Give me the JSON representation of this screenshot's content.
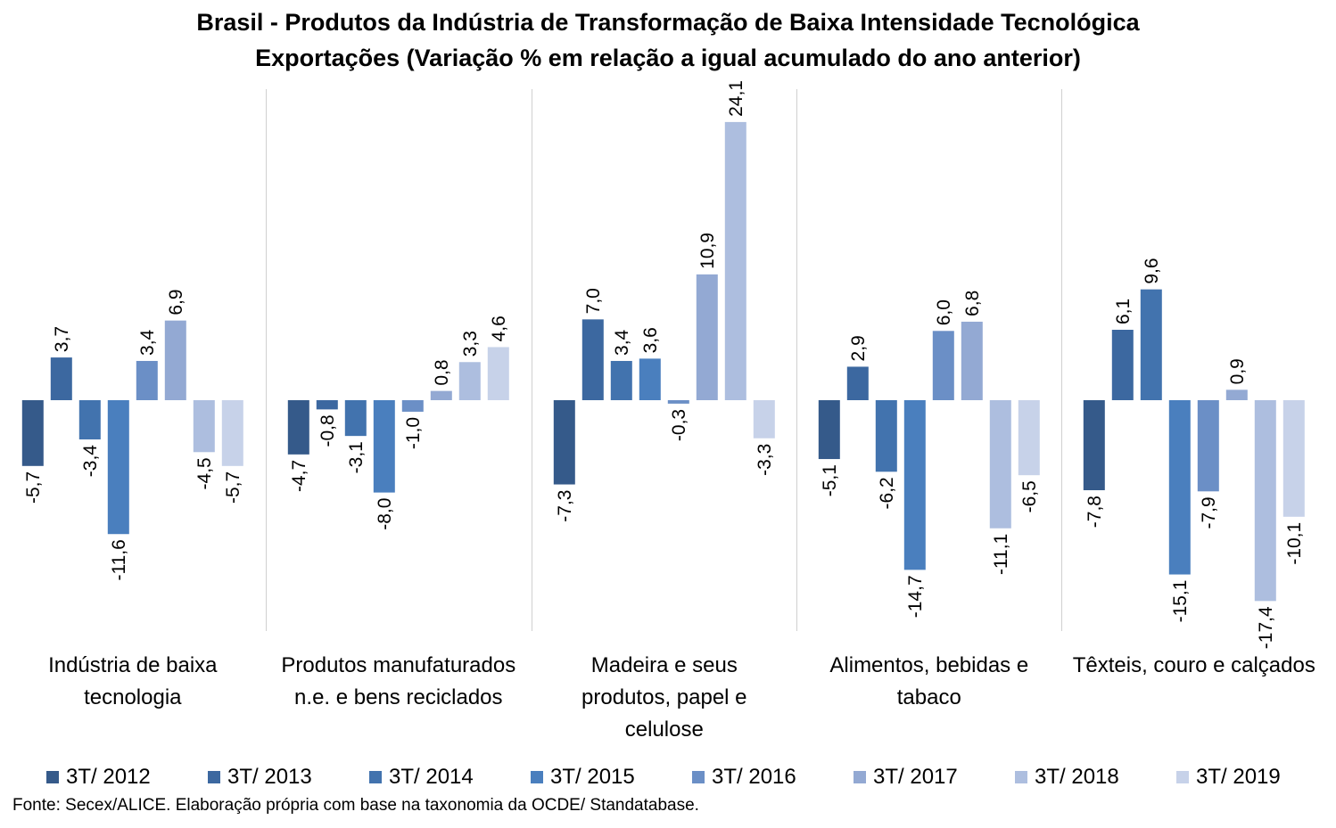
{
  "title": "Brasil - Produtos da Indústria de Transformação de Baixa Intensidade Tecnológica",
  "subtitle": "Exportações (Variação % em relação a igual acumulado do ano anterior)",
  "source": "Fonte: Secex/ALICE. Elaboração própria com base na taxonomia da OCDE/ Standatabase.",
  "chart_data": {
    "type": "bar",
    "categories": [
      [
        "Indústria de baixa",
        "tecnologia"
      ],
      [
        "Produtos manufaturados",
        "n.e. e bens reciclados"
      ],
      [
        "Madeira e seus",
        "produtos, papel e",
        "celulose"
      ],
      [
        "Alimentos, bebidas e",
        "tabaco"
      ],
      [
        "Têxteis, couro e calçados"
      ]
    ],
    "series": [
      {
        "name": "3T/ 2012",
        "color": "#355a8a",
        "values": [
          -5.7,
          -4.7,
          -7.3,
          -5.1,
          -7.8
        ],
        "labels": [
          "-5,7",
          "-4,7",
          "-7,3",
          "-5,1",
          "-7,8"
        ]
      },
      {
        "name": "3T/ 2013",
        "color": "#3c68a0",
        "values": [
          3.7,
          -0.8,
          7.0,
          2.9,
          6.1
        ],
        "labels": [
          "3,7",
          "-0,8",
          "7,0",
          "2,9",
          "6,1"
        ]
      },
      {
        "name": "3T/ 2014",
        "color": "#4273ae",
        "values": [
          -3.4,
          -3.1,
          3.4,
          -6.2,
          9.6
        ],
        "labels": [
          "-3,4",
          "-3,1",
          "3,4",
          "-6,2",
          "9,6"
        ]
      },
      {
        "name": "3T/ 2015",
        "color": "#4a7fbe",
        "values": [
          -11.6,
          -8.0,
          3.6,
          -14.7,
          -15.1
        ],
        "labels": [
          "-11,6",
          "-8,0",
          "3,6",
          "-14,7",
          "-15,1"
        ]
      },
      {
        "name": "3T/ 2016",
        "color": "#6b8fc6",
        "values": [
          3.4,
          -1.0,
          -0.3,
          6.0,
          -7.9
        ],
        "labels": [
          "3,4",
          "-1,0",
          "-0,3",
          "6,0",
          "-7,9"
        ]
      },
      {
        "name": "3T/ 2017",
        "color": "#93a9d3",
        "values": [
          6.9,
          0.8,
          10.9,
          6.8,
          0.9
        ],
        "labels": [
          "6,9",
          "0,8",
          "10,9",
          "6,8",
          "0,9"
        ]
      },
      {
        "name": "3T/ 2018",
        "color": "#adbedf",
        "values": [
          -4.5,
          3.3,
          24.1,
          -11.1,
          -17.4
        ],
        "labels": [
          "-4,5",
          "3,3",
          "24,1",
          "-11,1",
          "-17,4"
        ]
      },
      {
        "name": "3T/ 2019",
        "color": "#c7d2e9",
        "values": [
          -5.7,
          4.6,
          -3.3,
          -6.5,
          -10.1
        ],
        "labels": [
          "-5,7",
          "4,6",
          "-3,3",
          "-6,5",
          "-10,1"
        ]
      }
    ],
    "gridlines": false,
    "legend_position": "bottom"
  }
}
